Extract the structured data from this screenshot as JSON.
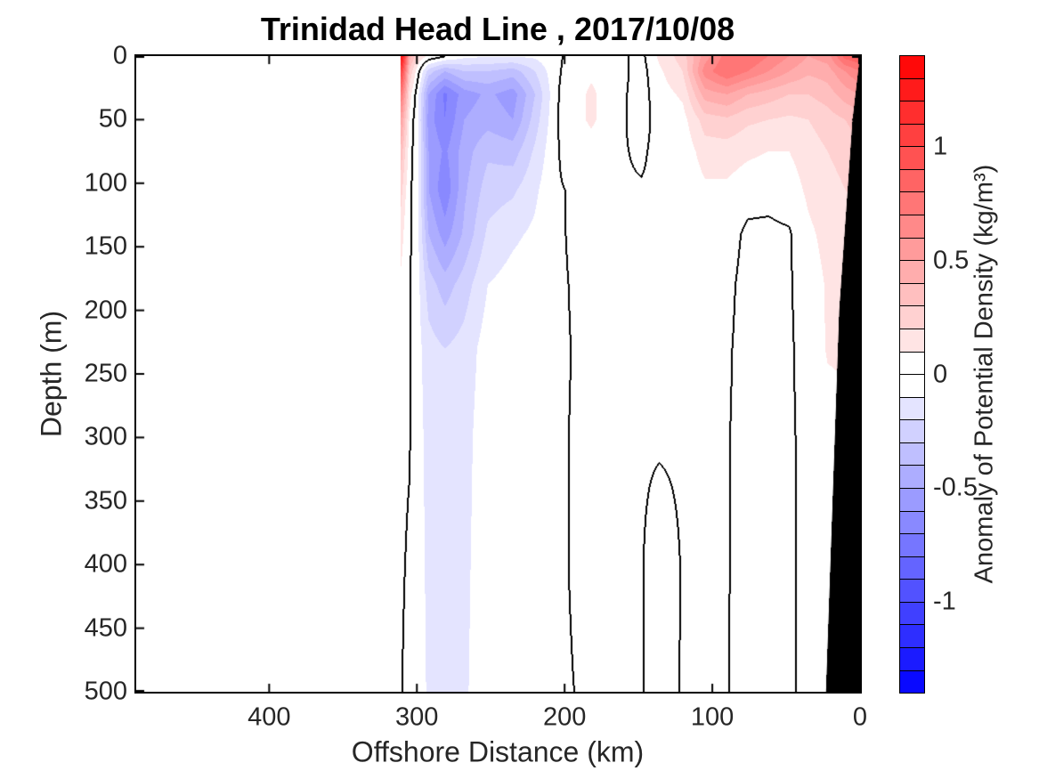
{
  "window": {
    "background": "#ffffff"
  },
  "chart_data": {
    "type": "heatmap",
    "title": "Trinidad Head Line , 2017/10/08",
    "x_axis": {
      "label": "Offshore Distance (km)",
      "ticks": [
        400,
        300,
        200,
        100,
        0
      ],
      "min": 0,
      "max": 490,
      "reversed": true
    },
    "y_axis": {
      "label": "Depth (m)",
      "ticks": [
        0,
        50,
        100,
        150,
        200,
        250,
        300,
        350,
        400,
        450,
        500
      ],
      "min": 0,
      "max": 500,
      "reversed": true
    },
    "colorbar": {
      "label": "Anomaly of Potential Density (kg/m³)",
      "ticks": [
        1,
        0.5,
        0,
        -0.5,
        -1
      ],
      "min": -1.4,
      "max": 1.4,
      "band_step": 0.1,
      "positive_color": "#ff0000",
      "negative_color": "#0000ff",
      "zero_color": "#ffffff"
    },
    "contours": {
      "zero_line_level": 0,
      "zero_line_color": "#000000"
    },
    "mask_color": "#000000",
    "data_extent_km": 311,
    "bathymetry_mask_km_depth": [
      [
        0,
        0
      ],
      [
        5,
        50
      ],
      [
        14,
        200
      ],
      [
        23,
        500
      ],
      [
        0,
        500
      ]
    ],
    "grid": {
      "depths_m": [
        0,
        12,
        30,
        50,
        75,
        105,
        140,
        180,
        230,
        300,
        400,
        500
      ],
      "stations": [
        {
          "km": 0,
          "values": [
            0.9,
            0.7,
            0.5,
            0.35,
            0.28,
            0.22,
            0.18,
            0.15,
            0.12,
            0.06,
            0.03,
            0.02
          ]
        },
        {
          "km": 10,
          "values": [
            0.85,
            0.6,
            0.45,
            0.3,
            0.24,
            0.2,
            0.16,
            0.13,
            0.12,
            0.06,
            0.02,
            0.01
          ]
        },
        {
          "km": 22,
          "values": [
            0.55,
            0.45,
            0.35,
            0.25,
            0.2,
            0.16,
            0.13,
            0.11,
            0.11,
            0.05,
            0.02,
            0.01
          ]
        },
        {
          "km": 35,
          "values": [
            0.5,
            0.42,
            0.3,
            0.2,
            0.15,
            0.12,
            0.08,
            0.05,
            0.03,
            0.02,
            0.01,
            0.01
          ]
        },
        {
          "km": 48,
          "values": [
            0.6,
            0.5,
            0.3,
            0.18,
            0.1,
            0.05,
            -0.01,
            -0.01,
            -0.01,
            -0.01,
            -0.005,
            -0.005
          ]
        },
        {
          "km": 62,
          "values": [
            0.7,
            0.6,
            0.35,
            0.2,
            0.1,
            0.03,
            -0.02,
            -0.03,
            -0.03,
            -0.03,
            -0.02,
            -0.02
          ]
        },
        {
          "km": 76,
          "values": [
            0.8,
            0.7,
            0.4,
            0.22,
            0.12,
            0.04,
            -0.02,
            -0.03,
            -0.03,
            -0.03,
            -0.02,
            -0.02
          ]
        },
        {
          "km": 90,
          "values": [
            0.75,
            0.8,
            0.5,
            0.28,
            0.15,
            0.08,
            0.04,
            0.02,
            0.01,
            0.005,
            0.003,
            0.002
          ]
        },
        {
          "km": 105,
          "values": [
            0.55,
            0.65,
            0.45,
            0.25,
            0.15,
            0.08,
            0.04,
            0.01,
            0.005,
            0.003,
            0.002,
            0.001
          ]
        },
        {
          "km": 120,
          "values": [
            0.25,
            0.2,
            0.12,
            0.06,
            0.03,
            0.02,
            0.01,
            0.005,
            0.003,
            0.002,
            0.001,
            0.001
          ]
        },
        {
          "km": 136,
          "values": [
            0.12,
            0.08,
            0.05,
            0.03,
            0.02,
            0.01,
            0.005,
            0.004,
            0.003,
            0.002,
            -0.008,
            -0.006
          ]
        },
        {
          "km": 148,
          "values": [
            -0.03,
            -0.04,
            -0.04,
            -0.03,
            -0.01,
            0.005,
            0.004,
            0.003,
            0.002,
            0.002,
            0.001,
            0.001
          ]
        },
        {
          "km": 165,
          "values": [
            0.03,
            0.04,
            0.03,
            0.02,
            0.01,
            0.006,
            0.004,
            0.003,
            0.002,
            0.002,
            0.001,
            0.001
          ]
        },
        {
          "km": 182,
          "values": [
            0.05,
            0.08,
            0.12,
            0.12,
            0.05,
            0.01,
            0.006,
            0.004,
            0.003,
            0.002,
            0.002,
            0.001
          ]
        },
        {
          "km": 205,
          "values": [
            -0.01,
            -0.01,
            -0.006,
            -0.004,
            -0.003,
            -0.003,
            -0.002,
            -0.002,
            -0.002,
            -0.001,
            -0.001,
            -0.001
          ]
        },
        {
          "km": 220,
          "values": [
            -0.08,
            -0.2,
            -0.3,
            -0.25,
            -0.18,
            -0.12,
            -0.08,
            -0.04,
            -0.02,
            -0.01,
            -0.008,
            -0.005
          ]
        },
        {
          "km": 235,
          "values": [
            -0.09,
            -0.35,
            -0.55,
            -0.5,
            -0.35,
            -0.22,
            -0.12,
            -0.06,
            -0.03,
            -0.02,
            -0.01,
            -0.008
          ]
        },
        {
          "km": 252,
          "values": [
            -0.09,
            -0.3,
            -0.48,
            -0.44,
            -0.32,
            -0.25,
            -0.18,
            -0.1,
            -0.05,
            -0.03,
            -0.02,
            -0.015
          ]
        },
        {
          "km": 268,
          "values": [
            -0.07,
            -0.3,
            -0.55,
            -0.5,
            -0.45,
            -0.42,
            -0.38,
            -0.25,
            -0.16,
            -0.14,
            -0.13,
            -0.12
          ]
        },
        {
          "km": 281,
          "values": [
            0.01,
            -0.4,
            -0.72,
            -0.7,
            -0.62,
            -0.68,
            -0.55,
            -0.35,
            -0.2,
            -0.17,
            -0.15,
            -0.14
          ]
        },
        {
          "km": 292,
          "values": [
            0.08,
            -0.25,
            -0.5,
            -0.55,
            -0.5,
            -0.5,
            -0.4,
            -0.25,
            -0.16,
            -0.14,
            -0.13,
            -0.12
          ]
        },
        {
          "km": 299,
          "values": [
            0.18,
            0.02,
            -0.08,
            -0.1,
            -0.1,
            -0.1,
            -0.09,
            -0.08,
            -0.07,
            -0.06,
            -0.05,
            -0.04
          ]
        },
        {
          "km": 305,
          "values": [
            0.45,
            0.28,
            0.15,
            0.08,
            0.05,
            0.03,
            0.02,
            0.01,
            0.005,
            0.005,
            -0.01,
            -0.02
          ]
        },
        {
          "km": 308,
          "values": [
            1.0,
            0.75,
            0.5,
            0.32,
            0.2,
            0.12,
            0.07,
            0.04,
            0.02,
            0.01,
            0.0,
            -0.01
          ]
        },
        {
          "km": 311,
          "values": [
            1.42,
            1.1,
            0.8,
            0.55,
            0.38,
            0.25,
            0.15,
            0.08,
            0.05,
            0.03,
            0.01,
            0.005
          ]
        }
      ]
    }
  }
}
